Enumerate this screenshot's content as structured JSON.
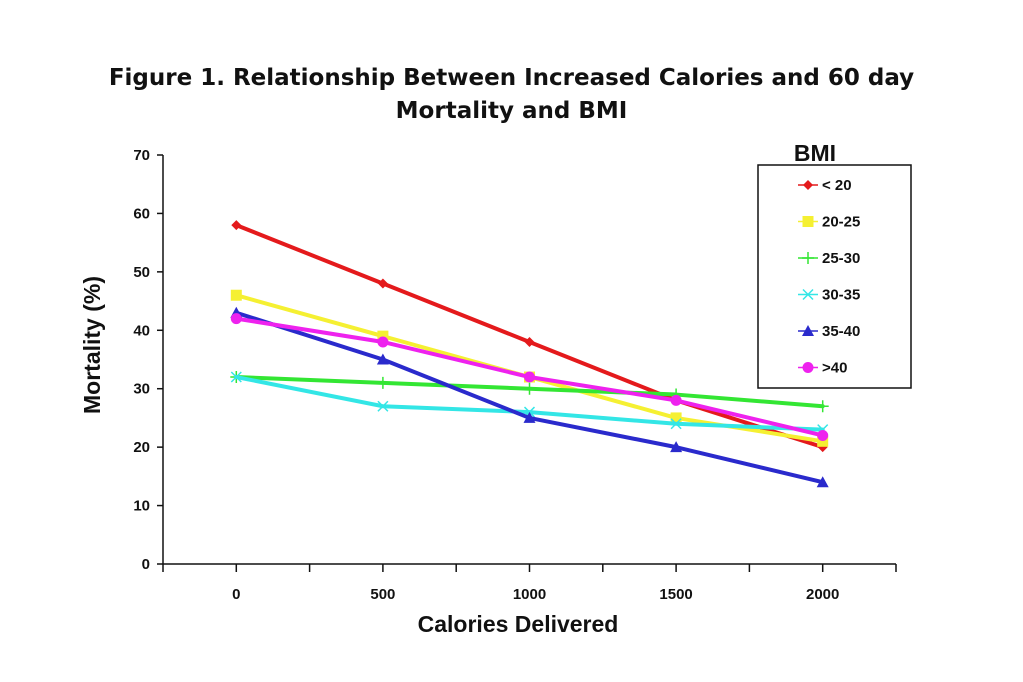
{
  "chart_data": {
    "type": "line",
    "title_lines": [
      "Figure 1. Relationship Between Increased Calories and 60 day",
      "Mortality and BMI"
    ],
    "xlabel": "Calories Delivered",
    "ylabel": "Mortality (%)",
    "x": [
      0,
      500,
      1000,
      1500,
      2000
    ],
    "xlim": [
      -250,
      2250
    ],
    "ylim": [
      0,
      70
    ],
    "yticks": [
      0,
      10,
      20,
      30,
      40,
      50,
      60,
      70
    ],
    "grid": false,
    "legend": {
      "title": "BMI",
      "placement": "top-right"
    },
    "series": [
      {
        "name": "< 20",
        "color": "#e41a1c",
        "marker": "diamond",
        "values": [
          58,
          48,
          38,
          28,
          20
        ]
      },
      {
        "name": "20-25",
        "color": "#f5f032",
        "marker": "square",
        "values": [
          46,
          39,
          32,
          25,
          21
        ]
      },
      {
        "name": "25-30",
        "color": "#33e633",
        "marker": "cross",
        "values": [
          32,
          31,
          30,
          29,
          27
        ]
      },
      {
        "name": "30-35",
        "color": "#33e6e6",
        "marker": "x",
        "values": [
          32,
          27,
          26,
          24,
          23
        ]
      },
      {
        "name": "35-40",
        "color": "#2a2acc",
        "marker": "triangle",
        "values": [
          43,
          35,
          25,
          20,
          14
        ]
      },
      {
        "name": ">40",
        "color": "#ee22ee",
        "marker": "circle",
        "values": [
          42,
          38,
          32,
          28,
          22
        ]
      }
    ]
  }
}
